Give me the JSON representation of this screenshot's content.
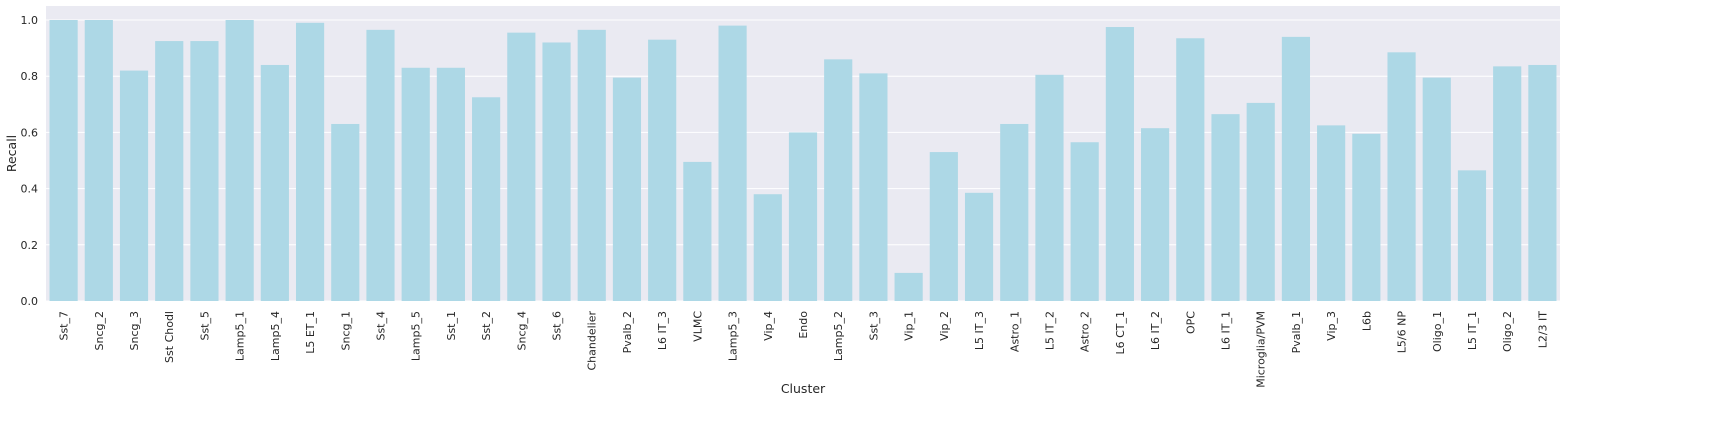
{
  "chart_data": {
    "type": "bar",
    "xlabel": "Cluster",
    "ylabel": "Recall",
    "ylim": [
      0,
      1.0
    ],
    "yticks": [
      "0.0",
      "0.2",
      "0.4",
      "0.6",
      "0.8",
      "1.0"
    ],
    "grid": true,
    "colors": {
      "bar": "#add8e6",
      "plot_background": "#eaeaf2",
      "grid": "#ffffff"
    },
    "categories": [
      "Sst_7",
      "Sncg_2",
      "Sncg_3",
      "Sst Chodl",
      "Sst_5",
      "Lamp5_1",
      "Lamp5_4",
      "L5 ET_1",
      "Sncg_1",
      "Sst_4",
      "Lamp5_5",
      "Sst_1",
      "Sst_2",
      "Sncg_4",
      "Sst_6",
      "Chandelier",
      "Pvalb_2",
      "L6 IT_3",
      "VLMC",
      "Lamp5_3",
      "Vip_4",
      "Endo",
      "Lamp5_2",
      "Sst_3",
      "Vip_1",
      "Vip_2",
      "L5 IT_3",
      "Astro_1",
      "L5 IT_2",
      "Astro_2",
      "L6 CT_1",
      "L6 IT_2",
      "OPC",
      "L6 IT_1",
      "Microglia/PVM",
      "Pvalb_1",
      "Vip_3",
      "L6b",
      "L5/6 NP",
      "Oligo_1",
      "L5 IT_1",
      "Oligo_2",
      "L2/3 IT"
    ],
    "values": [
      1.0,
      1.0,
      0.82,
      0.925,
      0.925,
      1.0,
      0.84,
      0.99,
      0.63,
      0.965,
      0.83,
      0.83,
      0.725,
      0.955,
      0.92,
      0.965,
      0.795,
      0.93,
      0.495,
      0.98,
      0.38,
      0.6,
      0.86,
      0.81,
      0.1,
      0.53,
      0.385,
      0.63,
      0.805,
      0.565,
      0.975,
      0.615,
      0.935,
      0.665,
      0.705,
      0.94,
      0.625,
      0.595,
      0.885,
      0.795,
      0.465,
      0.835,
      0.84
    ]
  }
}
